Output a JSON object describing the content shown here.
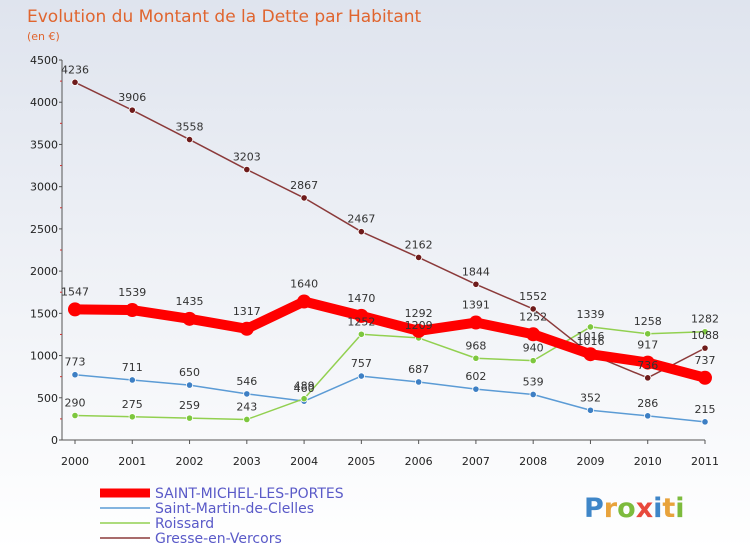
{
  "chart_data": {
    "type": "line",
    "title": "Evolution du Montant de la Dette par Habitant",
    "subtitle": "(en €)",
    "x": [
      "2000",
      "2001",
      "2002",
      "2003",
      "2004",
      "2005",
      "2006",
      "2007",
      "2008",
      "2009",
      "2010",
      "2011"
    ],
    "ylim": [
      0,
      4500
    ],
    "yticks": [
      0,
      500,
      1000,
      1500,
      2000,
      2500,
      3000,
      3500,
      4000,
      4500
    ],
    "grid": false,
    "legend_position": "bottom-left",
    "series": [
      {
        "name": "SAINT-MICHEL-LES-PORTES",
        "color": "#ff0000",
        "marker_color": "#ff0000",
        "emphasis": true,
        "values": [
          1547,
          1539,
          1435,
          1317,
          1640,
          1470,
          1292,
          1391,
          1252,
          1016,
          917,
          737
        ],
        "labels": [
          "1547",
          "1539",
          "1435",
          "1317",
          "1640",
          "1470",
          "1292",
          "1391",
          "1252",
          "1016",
          "917",
          "737"
        ]
      },
      {
        "name": "Saint-Martin-de-Clelles",
        "color": "#5b9bd5",
        "marker_color": "#3d7fc4",
        "emphasis": false,
        "values": [
          773,
          711,
          650,
          546,
          460,
          757,
          687,
          602,
          539,
          352,
          286,
          215
        ],
        "labels": [
          "773",
          "711",
          "650",
          "546",
          "460",
          "757",
          "687",
          "602",
          "539",
          "352",
          "286",
          "215"
        ]
      },
      {
        "name": "Roissard",
        "color": "#92d050",
        "marker_color": "#7dc73e",
        "emphasis": false,
        "values": [
          290,
          275,
          259,
          243,
          489,
          1252,
          1209,
          968,
          940,
          1339,
          1258,
          1282
        ],
        "labels": [
          "290",
          "275",
          "259",
          "243",
          "489",
          "1252",
          "1209",
          "968",
          "940",
          "1339",
          "1258",
          "1282"
        ]
      },
      {
        "name": "Gresse-en-Vercors",
        "color": "#8b3a3a",
        "marker_color": "#6e1b1b",
        "emphasis": false,
        "values": [
          4236,
          3906,
          3558,
          3203,
          2867,
          2467,
          2162,
          1844,
          1552,
          1016,
          736,
          1088
        ],
        "labels": [
          "4236",
          "3906",
          "3558",
          "3203",
          "2867",
          "2467",
          "2162",
          "1844",
          "1552",
          "1016",
          "736",
          "1088"
        ]
      }
    ]
  },
  "brand": {
    "text": "Proxiti",
    "letter_colors": [
      "#3f86c8",
      "#e8a33c",
      "#7dbb3d",
      "#e8493c",
      "#3f86c8",
      "#e8a33c",
      "#7dbb3d"
    ]
  }
}
